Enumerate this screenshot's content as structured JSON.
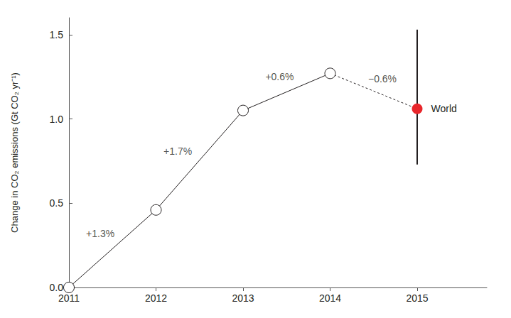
{
  "chart_data": {
    "type": "line",
    "y_label": "Change in CO₂ emissions (Gt CO₂ yr⁻¹)",
    "x": [
      2011,
      2012,
      2013,
      2014,
      2015
    ],
    "series": [
      {
        "values": [
          0,
          0.46,
          1.05,
          1.27,
          null
        ],
        "color": "#231f20",
        "marker": "circle",
        "line_style": "solid"
      },
      {
        "name": "World",
        "values": [
          null,
          null,
          null,
          null,
          1.06
        ],
        "color": "#e8262b",
        "marker": "circle",
        "line_style": "dashed",
        "low": [
          null,
          null,
          null,
          null,
          0.73
        ],
        "high": [
          null,
          null,
          null,
          null,
          1.53
        ]
      }
    ],
    "annotations": [
      {
        "text": "+1.3%",
        "x": 2011.36,
        "y": 0.32
      },
      {
        "text": "+1.7%",
        "x": 2012.25,
        "y": 0.81
      },
      {
        "text": "+0.6%",
        "x": 2013.42,
        "y": 1.25
      },
      {
        "text": "−0.6%",
        "x": 2014.6,
        "y": 1.24
      }
    ],
    "xlim": [
      2011,
      2015.8
    ],
    "xticks": [
      2011,
      2012,
      2013,
      2014,
      2015
    ],
    "ylim": [
      0,
      1.6
    ],
    "yticks": [
      {
        "value": 0,
        "label": "0.0"
      },
      {
        "value": 0.5,
        "label": "0.5"
      },
      {
        "value": 1,
        "label": "1.0"
      },
      {
        "value": 1.5,
        "label": "1.5"
      }
    ],
    "grid": false
  }
}
